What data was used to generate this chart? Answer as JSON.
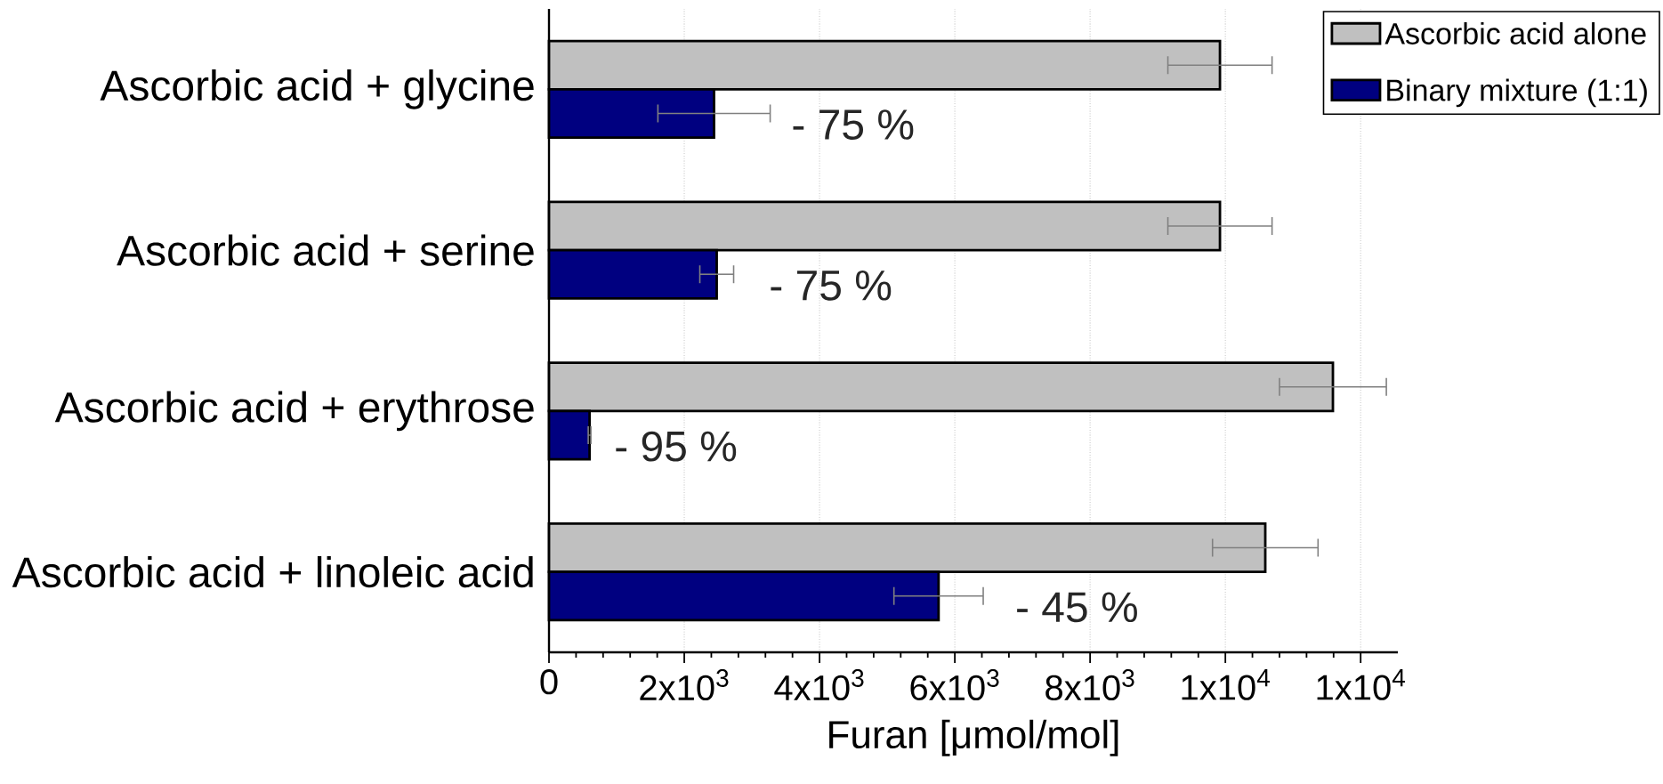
{
  "chart_data": {
    "type": "bar",
    "orientation": "horizontal",
    "xlabel": "Furan [μmol/mol]",
    "categories": [
      "Ascorbic acid + glycine",
      "Ascorbic acid + serine",
      "Ascorbic acid + erythrose",
      "Ascorbic acid + linoleic acid"
    ],
    "series": [
      {
        "name": "Ascorbic acid alone",
        "color": "#c0c0c0",
        "values": [
          9920,
          9920,
          11590,
          10590
        ],
        "errors": [
          770,
          770,
          790,
          780
        ]
      },
      {
        "name": "Binary mixture (1:1)",
        "color": "#000080",
        "values": [
          2440,
          2480,
          600,
          5760
        ],
        "errors": [
          830,
          250,
          20,
          660
        ]
      }
    ],
    "xlim": [
      0,
      12550
    ],
    "xticks": [
      0,
      {
        "value": 2000,
        "label": "2x10$^{3}$"
      },
      {
        "value": 4000,
        "label": "4x10$^{3}$"
      },
      {
        "value": 6000,
        "label": "6x10$^{3}$"
      },
      {
        "value": 8000,
        "label": "8x10$^{3}$"
      },
      {
        "value": 10000,
        "label": "1x10$^{4}$"
      },
      {
        "value": 12000,
        "label": "1x10$^{4}$"
      }
    ],
    "annotations": [
      {
        "text": "- 75 %",
        "x": 3490,
        "y": "Ascorbic acid + glycine"
      },
      {
        "text": "- 75 %",
        "x": 3160,
        "y": "Ascorbic acid + serine"
      },
      {
        "text": "- 95 %",
        "x": 870,
        "y": "Ascorbic acid + erythrose"
      },
      {
        "text": "- 45 %",
        "x": 6800,
        "y": "Ascorbic acid + linoleic acid"
      }
    ],
    "grid": "x",
    "legend": "top right"
  }
}
